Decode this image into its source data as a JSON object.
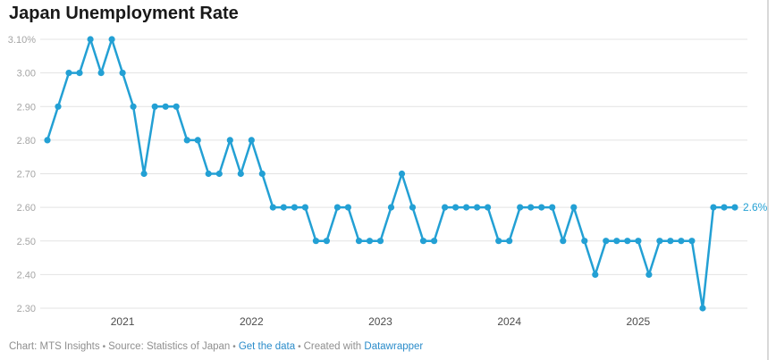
{
  "header": {
    "title": "Japan Unemployment Rate"
  },
  "chart_data": {
    "type": "line",
    "title": "Japan Unemployment Rate",
    "unit": "percent",
    "ylim": [
      2.3,
      3.1
    ],
    "grid": true,
    "line_color": "#23a0d4",
    "values": [
      2.8,
      2.9,
      3.0,
      3.0,
      3.1,
      3.0,
      3.1,
      3.0,
      2.9,
      2.7,
      2.9,
      2.9,
      2.9,
      2.8,
      2.8,
      2.7,
      2.7,
      2.8,
      2.7,
      2.8,
      2.7,
      2.6,
      2.6,
      2.6,
      2.6,
      2.5,
      2.5,
      2.6,
      2.6,
      2.5,
      2.5,
      2.5,
      2.6,
      2.7,
      2.6,
      2.5,
      2.5,
      2.6,
      2.6,
      2.6,
      2.6,
      2.6,
      2.5,
      2.5,
      2.6,
      2.6,
      2.6,
      2.6,
      2.5,
      2.6,
      2.5,
      2.4,
      2.5,
      2.5,
      2.5,
      2.5,
      2.4,
      2.5,
      2.5,
      2.5,
      2.5,
      2.3,
      2.6,
      2.6,
      2.6
    ],
    "y_ticks": [
      {
        "value": 3.1,
        "label": "3.10%"
      },
      {
        "value": 3.0,
        "label": "3.00"
      },
      {
        "value": 2.9,
        "label": "2.90"
      },
      {
        "value": 2.8,
        "label": "2.80"
      },
      {
        "value": 2.7,
        "label": "2.70"
      },
      {
        "value": 2.6,
        "label": "2.60"
      },
      {
        "value": 2.5,
        "label": "2.50"
      },
      {
        "value": 2.4,
        "label": "2.40"
      },
      {
        "value": 2.3,
        "label": "2.30"
      }
    ],
    "x_ticks": [
      {
        "label": "2021",
        "index": 7
      },
      {
        "label": "2022",
        "index": 19
      },
      {
        "label": "2023",
        "index": 31
      },
      {
        "label": "2024",
        "index": 43
      },
      {
        "label": "2025",
        "index": 55
      }
    ],
    "end_label": "2.6%",
    "legend_position": "none"
  },
  "footer": {
    "chart_credit": "Chart: MTS Insights",
    "separator": "•",
    "source_credit": "Source: Statistics of Japan",
    "get_data_link": "Get the data",
    "created_with": "Created with",
    "datawrapper_link": "Datawrapper",
    "link_color": "#2b8cca"
  }
}
